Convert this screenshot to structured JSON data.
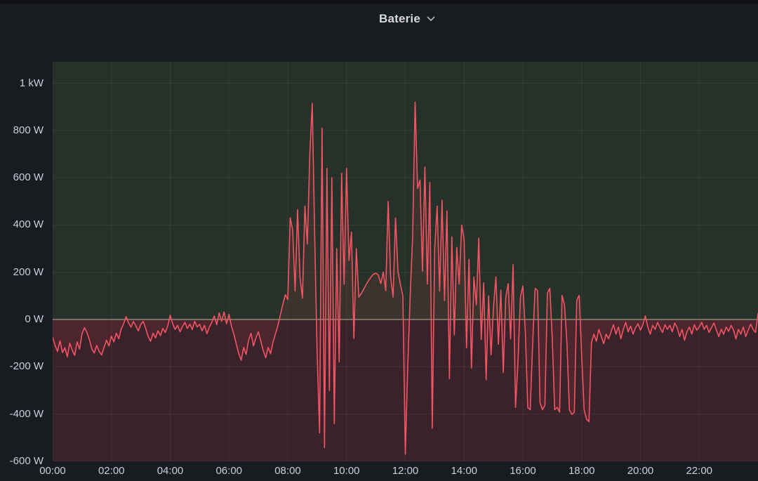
{
  "panel": {
    "title": "Baterie",
    "title_icon": "chevron-down-icon"
  },
  "colors": {
    "page_background": "#111217",
    "panel_background": "#181b1f",
    "series_line": "#f25464",
    "series_fill": "rgba(242,73,92,0.10)",
    "positive_region_bg": "#263129",
    "negative_region_bg": "#39222a",
    "gridline": "rgba(204,204,220,0.08)",
    "zero_line": "#b2bd99",
    "axis_text": "#ccccdc",
    "title_text": "#d8d9da"
  },
  "chart_data": {
    "type": "line",
    "title": "Baterie",
    "xlabel": "",
    "ylabel": "",
    "x_unit": "time-of-day",
    "step_minutes": 5,
    "x_start_hour": 0,
    "x_end_hour": 24,
    "ylim": [
      -600,
      1090
    ],
    "grid": true,
    "legend_position": "none",
    "zero_line": true,
    "y_ticks": [
      {
        "value": 1000,
        "label": "1 kW"
      },
      {
        "value": 800,
        "label": "800 W"
      },
      {
        "value": 600,
        "label": "600 W"
      },
      {
        "value": 400,
        "label": "400 W"
      },
      {
        "value": 200,
        "label": "200 W"
      },
      {
        "value": 0,
        "label": "0 W"
      },
      {
        "value": -200,
        "label": "-200 W"
      },
      {
        "value": -400,
        "label": "-400 W"
      },
      {
        "value": -600,
        "label": "-600 W"
      }
    ],
    "x_ticks": [
      {
        "hour": 0,
        "label": "00:00"
      },
      {
        "hour": 2,
        "label": "02:00"
      },
      {
        "hour": 4,
        "label": "04:00"
      },
      {
        "hour": 6,
        "label": "06:00"
      },
      {
        "hour": 8,
        "label": "08:00"
      },
      {
        "hour": 10,
        "label": "10:00"
      },
      {
        "hour": 12,
        "label": "12:00"
      },
      {
        "hour": 14,
        "label": "14:00"
      },
      {
        "hour": 16,
        "label": "16:00"
      },
      {
        "hour": 18,
        "label": "18:00"
      },
      {
        "hour": 20,
        "label": "20:00"
      },
      {
        "hour": 22,
        "label": "22:00"
      }
    ],
    "series": [
      {
        "name": "Baterie",
        "unit": "W",
        "color": "#f25464",
        "values": [
          -75,
          -110,
          -135,
          -90,
          -140,
          -120,
          -158,
          -100,
          -130,
          -152,
          -95,
          -125,
          -60,
          -35,
          -55,
          -85,
          -125,
          -142,
          -110,
          -135,
          -150,
          -118,
          -88,
          -112,
          -70,
          -95,
          -58,
          -82,
          -40,
          -18,
          12,
          -15,
          -32,
          -8,
          -28,
          -48,
          -20,
          -8,
          -38,
          -72,
          -92,
          -58,
          -78,
          -48,
          -68,
          -38,
          -55,
          -28,
          18,
          -18,
          -42,
          -25,
          -52,
          -30,
          -12,
          -38,
          -20,
          -42,
          -8,
          -32,
          -20,
          -48,
          -25,
          -60,
          -32,
          -12,
          15,
          -22,
          28,
          -8,
          32,
          -18,
          22,
          -28,
          -62,
          -105,
          -145,
          -172,
          -118,
          -148,
          -88,
          -58,
          -112,
          -78,
          -52,
          -92,
          -132,
          -162,
          -118,
          -145,
          -95,
          -60,
          -25,
          20,
          65,
          105,
          85,
          430,
          380,
          120,
          465,
          180,
          90,
          480,
          320,
          700,
          915,
          350,
          -150,
          -480,
          810,
          -542,
          640,
          -300,
          600,
          -440,
          300,
          -180,
          620,
          150,
          640,
          250,
          370,
          -80,
          300,
          95,
          110,
          128,
          148,
          165,
          180,
          192,
          196,
          188,
          152,
          200,
          122,
          500,
          180,
          95,
          430,
          205,
          148,
          100,
          -570,
          -200,
          105,
          355,
          920,
          555,
          590,
          205,
          645,
          150,
          580,
          -460,
          300,
          480,
          120,
          505,
          80,
          460,
          -250,
          350,
          -65,
          305,
          150,
          400,
          340,
          -120,
          255,
          -205,
          180,
          62,
          345,
          -85,
          155,
          -255,
          100,
          -150,
          52,
          180,
          -105,
          125,
          -225,
          92,
          152,
          -82,
          232,
          -372,
          -180,
          95,
          142,
          -52,
          -372,
          -382,
          -98,
          132,
          122,
          -352,
          -382,
          -362,
          112,
          132,
          -82,
          -382,
          -372,
          -392,
          102,
          62,
          -102,
          -382,
          -402,
          -392,
          82,
          102,
          -152,
          -382,
          -422,
          -432,
          -98,
          -62,
          -92,
          -42,
          -72,
          -102,
          -62,
          -82,
          -52,
          -22,
          -62,
          -32,
          -82,
          -42,
          -12,
          -52,
          -28,
          -62,
          -35,
          -18,
          -45,
          -22,
          15,
          -32,
          -62,
          -25,
          -42,
          -12,
          -35,
          -55,
          -22,
          -42,
          -25,
          -52,
          -15,
          -35,
          -72,
          -42,
          -88,
          -52,
          -32,
          -62,
          -22,
          -45,
          -32,
          -12,
          -42,
          -25,
          -55,
          -35,
          -15,
          -45,
          -72,
          -42,
          -62,
          -32,
          -50,
          -25,
          -45,
          -82,
          -42,
          -62,
          -32,
          -72,
          -45,
          -20,
          -42,
          -55,
          25
        ]
      }
    ]
  }
}
